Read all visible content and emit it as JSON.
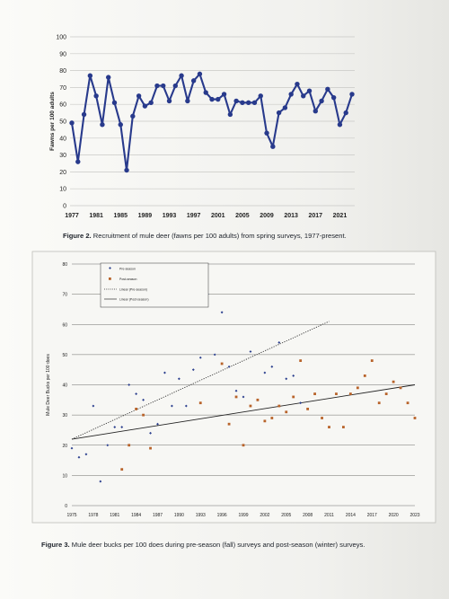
{
  "chart_data": [
    {
      "type": "line",
      "ylabel": "Fawns per 100 adults",
      "ylim": [
        0,
        100
      ],
      "yticks": [
        0,
        10,
        20,
        30,
        40,
        50,
        60,
        70,
        80,
        90,
        100
      ],
      "xtick_labels": [
        "1977",
        "1981",
        "1985",
        "1989",
        "1993",
        "1997",
        "2001",
        "2005",
        "2009",
        "2013",
        "2017",
        "2021"
      ],
      "grid": true,
      "color": "#283a8c",
      "x": [
        1977,
        1978,
        1979,
        1980,
        1981,
        1982,
        1983,
        1984,
        1985,
        1986,
        1987,
        1988,
        1989,
        1990,
        1991,
        1992,
        1993,
        1994,
        1995,
        1996,
        1997,
        1998,
        1999,
        2000,
        2001,
        2002,
        2003,
        2004,
        2005,
        2006,
        2007,
        2008,
        2009,
        2010,
        2011,
        2012,
        2013,
        2014,
        2015,
        2016,
        2017,
        2018,
        2019,
        2020,
        2021,
        2022,
        2023
      ],
      "values": [
        49,
        26,
        54,
        77,
        65,
        48,
        76,
        61,
        48,
        21,
        53,
        65,
        59,
        61,
        71,
        71,
        62,
        71,
        77,
        62,
        74,
        78,
        67,
        63,
        63,
        66,
        54,
        62,
        61,
        61,
        61,
        65,
        43,
        35,
        55,
        58,
        66,
        72,
        65,
        68,
        56,
        62,
        69,
        64,
        48,
        55,
        66
      ]
    },
    {
      "type": "scatter",
      "ylabel": "Mule Deer Bucks per 100 does",
      "ylim": [
        0,
        80
      ],
      "yticks": [
        0,
        10,
        20,
        30,
        40,
        50,
        60,
        70,
        80
      ],
      "xlim": [
        1975,
        2023
      ],
      "xticks": [
        1975,
        1978,
        1981,
        1984,
        1987,
        1990,
        1993,
        1996,
        1999,
        2002,
        2005,
        2008,
        2011,
        2014,
        2017,
        2020,
        2023
      ],
      "grid": true,
      "legend_position": "top-left",
      "series": [
        {
          "name": "Pre-season",
          "color": "#2b3f8e",
          "points": [
            [
              1975,
              19
            ],
            [
              1976,
              16
            ],
            [
              1977,
              17
            ],
            [
              1978,
              33
            ],
            [
              1979,
              8
            ],
            [
              1980,
              20
            ],
            [
              1981,
              26
            ],
            [
              1982,
              26
            ],
            [
              1983,
              40
            ],
            [
              1984,
              37
            ],
            [
              1985,
              35
            ],
            [
              1986,
              24
            ],
            [
              1987,
              27
            ],
            [
              1988,
              44
            ],
            [
              1989,
              33
            ],
            [
              1990,
              42
            ],
            [
              1991,
              33
            ],
            [
              1992,
              45
            ],
            [
              1993,
              49
            ],
            [
              1994,
              70
            ],
            [
              1995,
              50
            ],
            [
              1996,
              64
            ],
            [
              1997,
              46
            ],
            [
              1998,
              38
            ],
            [
              1999,
              36
            ],
            [
              2000,
              51
            ],
            [
              2001,
              35
            ],
            [
              2002,
              44
            ],
            [
              2003,
              46
            ],
            [
              2004,
              54
            ],
            [
              2005,
              42
            ],
            [
              2006,
              43
            ],
            [
              2007,
              34
            ]
          ]
        },
        {
          "name": "Post-season",
          "color": "#b8632a",
          "points": [
            [
              1982,
              12
            ],
            [
              1983,
              20
            ],
            [
              1984,
              32
            ],
            [
              1985,
              30
            ],
            [
              1986,
              19
            ],
            [
              1993,
              34
            ],
            [
              1996,
              47
            ],
            [
              1997,
              27
            ],
            [
              1998,
              36
            ],
            [
              1999,
              20
            ],
            [
              2000,
              33
            ],
            [
              2001,
              35
            ],
            [
              2002,
              28
            ],
            [
              2003,
              29
            ],
            [
              2004,
              33
            ],
            [
              2005,
              31
            ],
            [
              2006,
              36
            ],
            [
              2007,
              48
            ],
            [
              2008,
              32
            ],
            [
              2009,
              37
            ],
            [
              2010,
              29
            ],
            [
              2011,
              26
            ],
            [
              2012,
              37
            ],
            [
              2013,
              26
            ],
            [
              2014,
              37
            ],
            [
              2015,
              39
            ],
            [
              2016,
              43
            ],
            [
              2017,
              48
            ],
            [
              2018,
              34
            ],
            [
              2019,
              37
            ],
            [
              2020,
              41
            ],
            [
              2021,
              39
            ],
            [
              2022,
              34
            ],
            [
              2023,
              29
            ]
          ]
        },
        {
          "name": "Linear (Pre-season)",
          "style": "dotted",
          "color": "#333333",
          "line": [
            [
              1975,
              22
            ],
            [
              2011,
              61
            ]
          ]
        },
        {
          "name": "Linear (Post-season)",
          "style": "solid",
          "color": "#222222",
          "line": [
            [
              1975,
              22
            ],
            [
              2023,
              40
            ]
          ]
        }
      ]
    }
  ],
  "captions": {
    "fig2_label": "Figure 2.",
    "fig2_text": " Recruitment of mule deer (fawns per 100 adults) from spring surveys, 1977-present.",
    "fig3_label": "Figure 3.",
    "fig3_text": " Mule deer bucks per 100 does during pre-season (fall) surveys and post-season (winter) surveys."
  }
}
